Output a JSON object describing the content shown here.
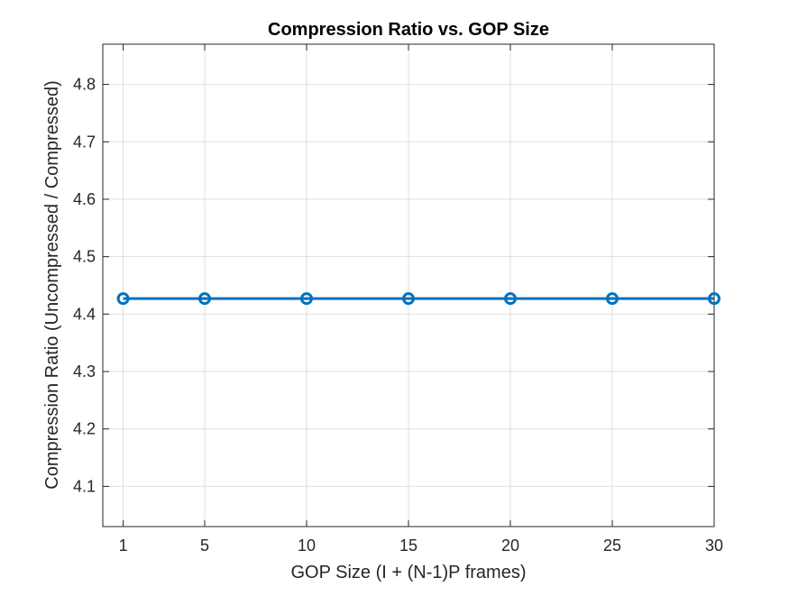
{
  "chart_data": {
    "type": "line",
    "title": "Compression Ratio vs. GOP Size",
    "xlabel": "GOP Size (I + (N-1)P frames)",
    "ylabel": "Compression Ratio (Uncompressed / Compressed)",
    "x": [
      1,
      5,
      10,
      15,
      20,
      25,
      30
    ],
    "series": [
      {
        "values": [
          4.427,
          4.427,
          4.427,
          4.427,
          4.427,
          4.427,
          4.427
        ],
        "color": "#0072BD",
        "marker": "circle"
      }
    ],
    "xlim": [
      0,
      30
    ],
    "ylim": [
      4.03,
      4.87
    ],
    "xticks": [
      1,
      5,
      10,
      15,
      20,
      25,
      30
    ],
    "xtick_labels": [
      "1",
      "5",
      "10",
      "15",
      "20",
      "25",
      "30"
    ],
    "yticks": [
      4.1,
      4.2,
      4.3,
      4.4,
      4.5,
      4.6,
      4.7,
      4.8
    ],
    "ytick_labels": [
      "4.1",
      "4.2",
      "4.3",
      "4.4",
      "4.5",
      "4.6",
      "4.7",
      "4.8"
    ],
    "grid": true,
    "legend": "none"
  }
}
